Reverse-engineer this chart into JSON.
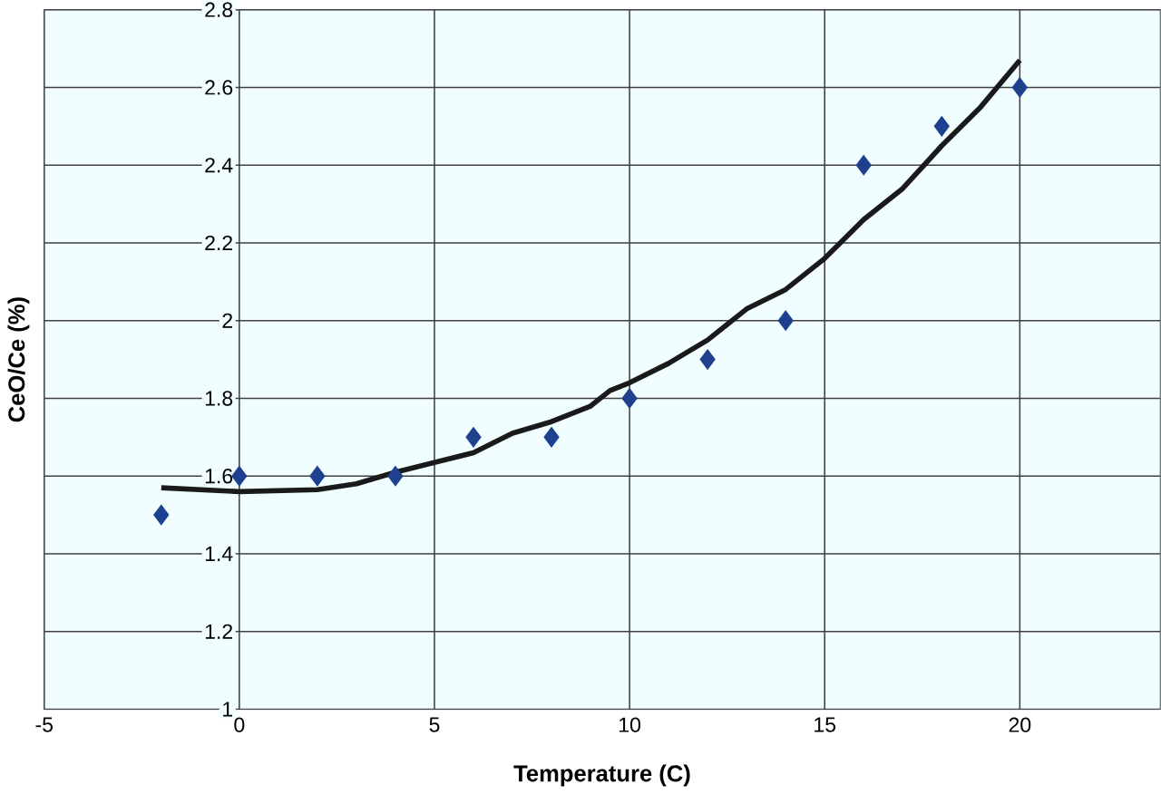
{
  "chart_data": {
    "type": "scatter",
    "xlabel": "Temperature (C)",
    "ylabel": "CeO/Ce (%)",
    "xlim": [
      -5,
      23.6
    ],
    "ylim": [
      1,
      2.8
    ],
    "xticks": [
      -5,
      0,
      5,
      10,
      15,
      20
    ],
    "yticks": [
      1,
      1.2,
      1.4,
      1.6,
      1.8,
      2,
      2.2,
      2.4,
      2.6,
      2.8
    ],
    "grid": true,
    "marker": "diamond",
    "series": [
      {
        "color": "#1f3f8f",
        "x": [
          -2,
          0,
          2,
          4,
          6,
          8,
          10,
          12,
          14,
          16,
          18,
          20
        ],
        "values": [
          1.5,
          1.6,
          1.6,
          1.6,
          1.7,
          1.7,
          1.8,
          1.9,
          2,
          2.4,
          2.5,
          2.6
        ]
      },
      {
        "type": "line",
        "color": "#1a1a1a",
        "marker": "none",
        "x": [
          -2,
          0,
          2,
          3,
          4,
          5,
          6,
          7,
          8,
          9,
          9.5,
          10,
          11,
          12,
          12.5,
          13,
          14,
          15,
          16,
          17,
          18,
          19,
          20
        ],
        "values": [
          1.57,
          1.56,
          1.565,
          1.58,
          1.61,
          1.635,
          1.66,
          1.71,
          1.74,
          1.78,
          1.82,
          1.84,
          1.89,
          1.95,
          1.99,
          2.03,
          2.08,
          2.16,
          2.26,
          2.34,
          2.45,
          2.55,
          2.67
        ]
      }
    ]
  }
}
